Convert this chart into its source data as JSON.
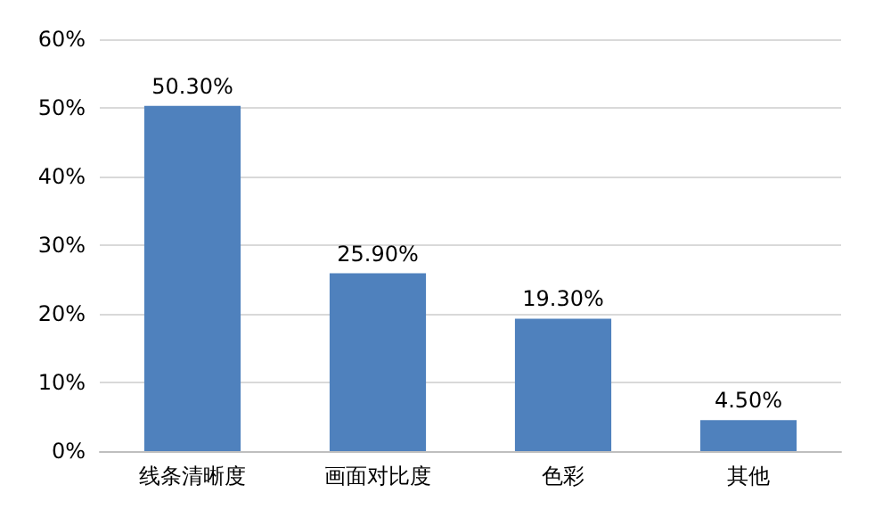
{
  "chart_data": {
    "type": "bar",
    "categories": [
      "线条清晰度",
      "画面对比度",
      "色彩",
      "其他"
    ],
    "values": [
      50.3,
      25.9,
      19.3,
      4.5
    ],
    "value_labels": [
      "50.30%",
      "25.90%",
      "19.30%",
      "4.50%"
    ],
    "color": "#4f81bd",
    "ylim": [
      0,
      60
    ],
    "yticks": [
      {
        "value": 0,
        "label": "0%"
      },
      {
        "value": 10,
        "label": "10%"
      },
      {
        "value": 20,
        "label": "20%"
      },
      {
        "value": 30,
        "label": "30%"
      },
      {
        "value": 40,
        "label": "40%"
      },
      {
        "value": 50,
        "label": "50%"
      },
      {
        "value": 60,
        "label": "60%"
      }
    ],
    "grid": "y"
  }
}
